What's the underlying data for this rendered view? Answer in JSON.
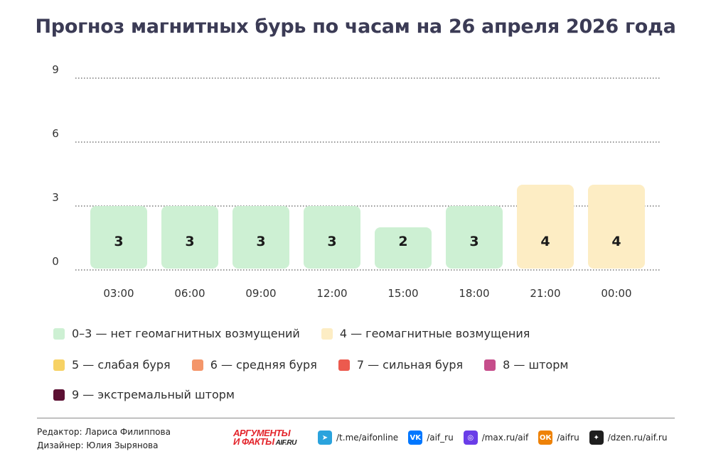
{
  "title": "Прогноз магнитных бурь по часам на 26 апреля 2026 года",
  "chart_data": {
    "type": "bar",
    "title": "Прогноз магнитных бурь по часам на 26 апреля 2026 года",
    "categories": [
      "03:00",
      "06:00",
      "09:00",
      "12:00",
      "15:00",
      "18:00",
      "21:00",
      "00:00"
    ],
    "values": [
      3,
      3,
      3,
      3,
      2,
      3,
      4,
      4
    ],
    "yticks": [
      0,
      3,
      6,
      9
    ],
    "ylim": [
      0,
      9
    ],
    "grid": true,
    "legend_position": "bottom",
    "level_colors": {
      "0-3": "#cdf0d3",
      "4": "#fdedc4",
      "5": "#f7d264",
      "6": "#f4966a",
      "7": "#ec5a4e",
      "8": "#c64d8b",
      "9": "#5c1033"
    }
  },
  "legend": {
    "rows": [
      [
        {
          "label": "0–3 — нет геомагнитных возмущений",
          "color": "#cdf0d3"
        },
        {
          "label": "4 — геомагнитные возмущения",
          "color": "#fdedc4"
        }
      ],
      [
        {
          "label": "5 — слабая буря",
          "color": "#f7d264"
        },
        {
          "label": "6 — средняя буря",
          "color": "#f4966a"
        },
        {
          "label": "7 — сильная буря",
          "color": "#ec5a4e"
        },
        {
          "label": "8 — шторм",
          "color": "#c64d8b"
        }
      ],
      [
        {
          "label": "9 — экстремальный шторм",
          "color": "#5c1033"
        }
      ]
    ]
  },
  "footer": {
    "editor": "Редактор: Лариса Филиппова",
    "designer": "Дизайнер: Юлия Зырянова",
    "brand_line1": "АРГУМЕНТЫ",
    "brand_line2": "И ФАКТЫ",
    "brand_domain": "AIF.RU",
    "socials": [
      {
        "icon": "telegram-icon",
        "text": "/t.me/aifonline",
        "color": "#2aa3dd",
        "glyph": "➤"
      },
      {
        "icon": "vk-icon",
        "text": "/aif_ru",
        "color": "#0077ff",
        "glyph": "VK"
      },
      {
        "icon": "max-icon",
        "text": "/max.ru/aif",
        "color": "#6a3de8",
        "glyph": "◎"
      },
      {
        "icon": "odnoklassniki-icon",
        "text": "/aifru",
        "color": "#ee8208",
        "glyph": "ОК"
      },
      {
        "icon": "dzen-icon",
        "text": "/dzen.ru/aif.ru",
        "color": "#1e1e1e",
        "glyph": "✦"
      }
    ]
  }
}
